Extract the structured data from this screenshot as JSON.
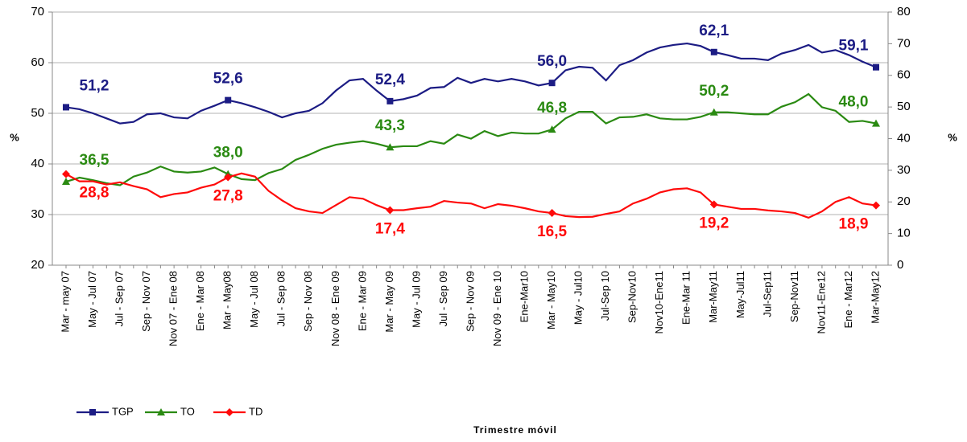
{
  "chart_data": {
    "type": "line",
    "xlabel": "Trimestre móvil",
    "ylabel": "%",
    "y2label": "%",
    "categories": [
      "Mar - may 07",
      null,
      "May - Jul 07",
      null,
      "Jul - Sep 07",
      null,
      "Sep - Nov 07",
      null,
      "Nov 07 - Ene 08",
      null,
      "Ene - Mar 08",
      null,
      "Mar - May08",
      null,
      "May - Jul 08",
      null,
      "Jul - Sep 08",
      null,
      "Sep - Nov 08",
      null,
      "Nov 08 - Ene 09",
      null,
      "Ene - Mar 09",
      null,
      "Mar - May 09",
      null,
      "May - Jul 09",
      null,
      "Jul - Sep 09",
      null,
      "Sep - Nov 09",
      null,
      "Nov 09 - Ene 10",
      null,
      "Ene-Mar10",
      null,
      "Mar - May10",
      null,
      "May - Jul10",
      null,
      "Jul-Sep 10",
      null,
      "Sep-Nov10",
      null,
      "Nov10-Ene11",
      null,
      "Ene-Mar 11",
      null,
      "Mar-May11",
      null,
      "May-Jul11",
      null,
      "Jul-Sep11",
      null,
      "Sep-Nov11",
      null,
      "Nov11-Ene12",
      null,
      "Ene - Mar12",
      null,
      "Mar-May12"
    ],
    "series": [
      {
        "name": "TGP",
        "color": "#1c1c84",
        "axis": "y",
        "values": [
          51.2,
          50.8,
          50,
          49,
          48,
          48.3,
          49.8,
          50,
          49.2,
          49,
          50.5,
          51.5,
          52.6,
          52,
          51.2,
          50.3,
          49.2,
          50,
          50.5,
          52,
          54.5,
          56.5,
          56.8,
          54.5,
          52.4,
          52.8,
          53.5,
          55,
          55.2,
          57,
          56,
          56.8,
          56.3,
          56.8,
          56.3,
          55.5,
          56.0,
          58.5,
          59.2,
          59,
          56.5,
          59.5,
          60.5,
          62,
          63,
          63.5,
          63.8,
          63.3,
          62.1,
          61.5,
          60.8,
          60.8,
          60.5,
          61.8,
          62.5,
          63.5,
          62,
          62.5,
          61.5,
          60.2,
          59.1
        ],
        "value_labels": [
          "51,2",
          null,
          null,
          null,
          null,
          null,
          null,
          null,
          null,
          null,
          null,
          null,
          "52,6",
          null,
          null,
          null,
          null,
          null,
          null,
          null,
          null,
          null,
          null,
          null,
          "52,4",
          null,
          null,
          null,
          null,
          null,
          null,
          null,
          null,
          null,
          null,
          null,
          "56,0",
          null,
          null,
          null,
          null,
          null,
          null,
          null,
          null,
          null,
          null,
          null,
          "62,1",
          null,
          null,
          null,
          null,
          null,
          null,
          null,
          null,
          null,
          null,
          null,
          "59,1"
        ]
      },
      {
        "name": "TO",
        "color": "#2a8a12",
        "axis": "y",
        "values": [
          36.5,
          37.3,
          36.8,
          36.2,
          35.8,
          37.5,
          38.3,
          39.5,
          38.5,
          38.3,
          38.5,
          39.3,
          38.0,
          37,
          36.8,
          38.2,
          39,
          40.8,
          41.8,
          43,
          43.8,
          44.2,
          44.5,
          44,
          43.3,
          43.5,
          43.5,
          44.5,
          44,
          45.8,
          45,
          46.5,
          45.5,
          46.2,
          46,
          46,
          46.8,
          49,
          50.3,
          50.3,
          48,
          49.2,
          49.3,
          49.8,
          49,
          48.8,
          48.8,
          49.3,
          50.2,
          50.2,
          50,
          49.8,
          49.8,
          51.3,
          52.2,
          53.8,
          51.2,
          50.5,
          48.3,
          48.5,
          48.0
        ],
        "value_labels": [
          "36,5",
          null,
          null,
          null,
          null,
          null,
          null,
          null,
          null,
          null,
          null,
          null,
          "38,0",
          null,
          null,
          null,
          null,
          null,
          null,
          null,
          null,
          null,
          null,
          null,
          "43,3",
          null,
          null,
          null,
          null,
          null,
          null,
          null,
          null,
          null,
          null,
          null,
          "46,8",
          null,
          null,
          null,
          null,
          null,
          null,
          null,
          null,
          null,
          null,
          null,
          "50,2",
          null,
          null,
          null,
          null,
          null,
          null,
          null,
          null,
          null,
          null,
          null,
          "48,0"
        ]
      },
      {
        "name": "TD",
        "color": "#ff0a0a",
        "axis": "y2",
        "values": [
          28.8,
          26.5,
          26.5,
          25.5,
          26.2,
          25,
          24,
          21.5,
          22.5,
          23,
          24.5,
          25.5,
          27.8,
          29,
          28,
          23.5,
          20.5,
          18,
          17,
          16.5,
          19,
          21.5,
          21,
          19,
          17.4,
          17.4,
          18,
          18.5,
          20.3,
          19.8,
          19.5,
          18,
          19.3,
          18.8,
          18,
          17,
          16.5,
          15.5,
          15.2,
          15.3,
          16.2,
          17,
          19.5,
          21,
          23,
          24,
          24.3,
          23,
          19.2,
          18.5,
          17.8,
          17.8,
          17.3,
          17,
          16.5,
          15,
          17,
          20,
          21.5,
          19.5,
          18.9
        ],
        "value_labels": [
          "28,8",
          null,
          null,
          null,
          null,
          null,
          null,
          null,
          null,
          null,
          null,
          null,
          "27,8",
          null,
          null,
          null,
          null,
          null,
          null,
          null,
          null,
          null,
          null,
          null,
          "17,4",
          null,
          null,
          null,
          null,
          null,
          null,
          null,
          null,
          null,
          null,
          null,
          "16,5",
          null,
          null,
          null,
          null,
          null,
          null,
          null,
          null,
          null,
          null,
          null,
          "19,2",
          null,
          null,
          null,
          null,
          null,
          null,
          null,
          null,
          null,
          null,
          null,
          "18,9"
        ]
      }
    ],
    "ylim": [
      20,
      70
    ],
    "yticks": [
      20,
      30,
      40,
      50,
      60,
      70
    ],
    "y2lim": [
      0,
      80
    ],
    "y2ticks": [
      0,
      10,
      20,
      30,
      40,
      50,
      60,
      70,
      80
    ],
    "grid": true,
    "legend": "bottom-left"
  }
}
